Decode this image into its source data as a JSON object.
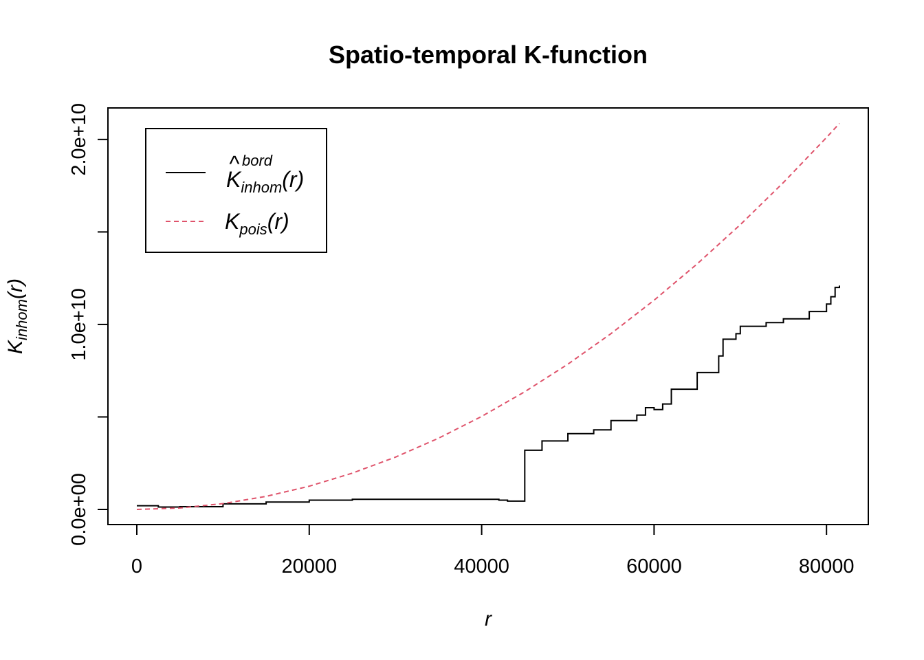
{
  "chart_data": {
    "type": "line",
    "title": "Spatio-temporal K-function",
    "xlabel": "r",
    "ylabel": {
      "main": "K",
      "sub": "inhom",
      "arg": "(r)"
    },
    "xlim": [
      0,
      81500
    ],
    "ylim": [
      0,
      20700000000
    ],
    "x_ticks": [
      0,
      20000,
      40000,
      60000,
      80000
    ],
    "x_tick_labels": [
      "0",
      "20000",
      "40000",
      "60000",
      "80000"
    ],
    "y_ticks": [
      0,
      5000000000,
      10000000000,
      15000000000,
      20000000000
    ],
    "y_tick_labels": [
      "0.0e+00",
      "",
      "1.0e+10",
      "",
      "2.0e+10"
    ],
    "grid": false,
    "legend_position": "top-left",
    "series": [
      {
        "name": "K̂ inhom bord (r)",
        "legend": {
          "main": "K",
          "hat": "^",
          "sup": "bord",
          "sub": "inhom",
          "arg": "(r)"
        },
        "color": "#000000",
        "style": "solid",
        "x": [
          0,
          2000,
          2500,
          5000,
          10000,
          15000,
          20000,
          25000,
          30000,
          35000,
          40000,
          42000,
          43000,
          44900,
          45000,
          47000,
          50000,
          53000,
          55000,
          58000,
          59000,
          60000,
          61000,
          62000,
          65000,
          67500,
          68000,
          69500,
          70000,
          73000,
          75000,
          78000,
          80000,
          80500,
          81000,
          81500
        ],
        "y": [
          200000000,
          200000000,
          130000000,
          150000000,
          300000000,
          400000000,
          500000000,
          550000000,
          550000000,
          550000000,
          550000000,
          500000000,
          450000000,
          450000000,
          3200000000,
          3700000000,
          4100000000,
          4300000000,
          4800000000,
          5100000000,
          5500000000,
          5400000000,
          5700000000,
          6500000000,
          7400000000,
          8300000000,
          9200000000,
          9500000000,
          9900000000,
          10100000000,
          10300000000,
          10700000000,
          11100000000,
          11500000000,
          12000000000,
          12100000000
        ]
      },
      {
        "name": "K pois (r)",
        "legend": {
          "main": "K",
          "sub": "pois",
          "arg": "(r)"
        },
        "color": "#DF536B",
        "style": "dashed",
        "x": [
          0,
          5000,
          10000,
          15000,
          20000,
          25000,
          30000,
          35000,
          40000,
          45000,
          50000,
          55000,
          60000,
          65000,
          70000,
          75000,
          80000,
          81500
        ],
        "y": [
          0,
          78539816,
          314159265,
          706858347,
          1256637061,
          1963495408,
          2827433388,
          3848451001,
          5026548246,
          6361725124,
          7853981634,
          9503317777,
          11309733553,
          13273228961,
          15393804003,
          17671458677,
          20106192983,
          20867243803
        ]
      }
    ]
  }
}
